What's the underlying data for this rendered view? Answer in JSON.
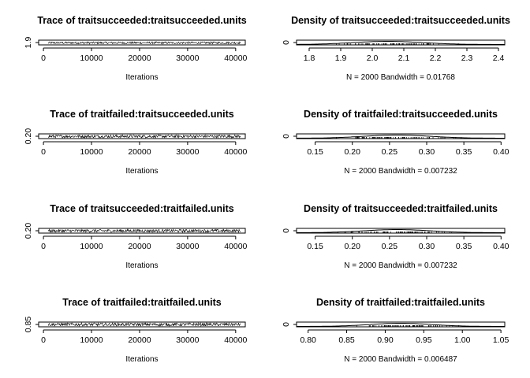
{
  "chart_data": [
    {
      "type": "line",
      "title": "Trace of traitsucceeded:traitsucceeded.units",
      "xlabel": "Iterations",
      "xlim": [
        -1000,
        42000
      ],
      "x_ticks": [
        "0",
        "10000",
        "20000",
        "30000",
        "40000"
      ],
      "x_tick_values": [
        0,
        10000,
        20000,
        30000,
        40000
      ],
      "y_ticks": [
        "1.9"
      ],
      "y_tick_values": [
        1.9
      ],
      "ylim": [
        1.76,
        2.42
      ],
      "trace_x_range": [
        1000,
        41000
      ],
      "n": 2000,
      "series_center": 2.05,
      "series_spread": 0.15
    },
    {
      "type": "line",
      "title": "Density of traitsucceeded:traitsucceeded.units",
      "xlabel": "N = 2000   Bandwidth = 0.01768",
      "xlim": [
        1.76,
        2.42
      ],
      "x_ticks": [
        "1.8",
        "1.9",
        "2.0",
        "2.1",
        "2.2",
        "2.3",
        "2.4"
      ],
      "x_tick_values": [
        1.8,
        1.9,
        2.0,
        2.1,
        2.2,
        2.3,
        2.4
      ],
      "y_ticks": [
        "0"
      ],
      "y_tick_values": [
        0
      ],
      "density_center": 2.05,
      "density_sd": 0.11
    },
    {
      "type": "line",
      "title": "Trace of traitfailed:traitsucceeded.units",
      "xlabel": "Iterations",
      "xlim": [
        -1000,
        42000
      ],
      "x_ticks": [
        "0",
        "10000",
        "20000",
        "30000",
        "40000"
      ],
      "x_tick_values": [
        0,
        10000,
        20000,
        30000,
        40000
      ],
      "y_ticks": [
        "0.20"
      ],
      "y_tick_values": [
        0.2
      ],
      "ylim": [
        0.125,
        0.405
      ],
      "trace_x_range": [
        1000,
        41000
      ],
      "n": 2000,
      "series_center": 0.26,
      "series_spread": 0.09
    },
    {
      "type": "line",
      "title": "Density of traitfailed:traitsucceeded.units",
      "xlabel": "N = 2000   Bandwidth = 0.007232",
      "xlim": [
        0.125,
        0.405
      ],
      "x_ticks": [
        "0.15",
        "0.20",
        "0.25",
        "0.30",
        "0.35",
        "0.40"
      ],
      "x_tick_values": [
        0.15,
        0.2,
        0.25,
        0.3,
        0.35,
        0.4
      ],
      "y_ticks": [
        "0"
      ],
      "y_tick_values": [
        0
      ],
      "density_center": 0.26,
      "density_sd": 0.045
    },
    {
      "type": "line",
      "title": "Trace of traitsucceeded:traitfailed.units",
      "xlabel": "Iterations",
      "xlim": [
        -1000,
        42000
      ],
      "x_ticks": [
        "0",
        "10000",
        "20000",
        "30000",
        "40000"
      ],
      "x_tick_values": [
        0,
        10000,
        20000,
        30000,
        40000
      ],
      "y_ticks": [
        "0.20"
      ],
      "y_tick_values": [
        0.2
      ],
      "ylim": [
        0.125,
        0.405
      ],
      "trace_x_range": [
        1000,
        41000
      ],
      "n": 2000,
      "series_center": 0.26,
      "series_spread": 0.09
    },
    {
      "type": "line",
      "title": "Density of traitsucceeded:traitfailed.units",
      "xlabel": "N = 2000   Bandwidth = 0.007232",
      "xlim": [
        0.125,
        0.405
      ],
      "x_ticks": [
        "0.15",
        "0.20",
        "0.25",
        "0.30",
        "0.35",
        "0.40"
      ],
      "x_tick_values": [
        0.15,
        0.2,
        0.25,
        0.3,
        0.35,
        0.4
      ],
      "y_ticks": [
        "0"
      ],
      "y_tick_values": [
        0
      ],
      "density_center": 0.26,
      "density_sd": 0.045
    },
    {
      "type": "line",
      "title": "Trace of traitfailed:traitfailed.units",
      "xlabel": "Iterations",
      "xlim": [
        -1000,
        42000
      ],
      "x_ticks": [
        "0",
        "10000",
        "20000",
        "30000",
        "40000"
      ],
      "x_tick_values": [
        0,
        10000,
        20000,
        30000,
        40000
      ],
      "y_ticks": [
        "0.85"
      ],
      "y_tick_values": [
        0.85
      ],
      "ylim": [
        0.785,
        1.055
      ],
      "trace_x_range": [
        1000,
        41000
      ],
      "n": 2000,
      "series_center": 0.92,
      "series_spread": 0.09
    },
    {
      "type": "line",
      "title": "Density of traitfailed:traitfailed.units",
      "xlabel": "N = 2000   Bandwidth = 0.006487",
      "xlim": [
        0.785,
        1.055
      ],
      "x_ticks": [
        "0.80",
        "0.85",
        "0.90",
        "0.95",
        "1.00",
        "1.05"
      ],
      "x_tick_values": [
        0.8,
        0.85,
        0.9,
        0.95,
        1.0,
        1.05
      ],
      "y_ticks": [
        "0"
      ],
      "y_tick_values": [
        0
      ],
      "density_center": 0.92,
      "density_sd": 0.04
    }
  ]
}
